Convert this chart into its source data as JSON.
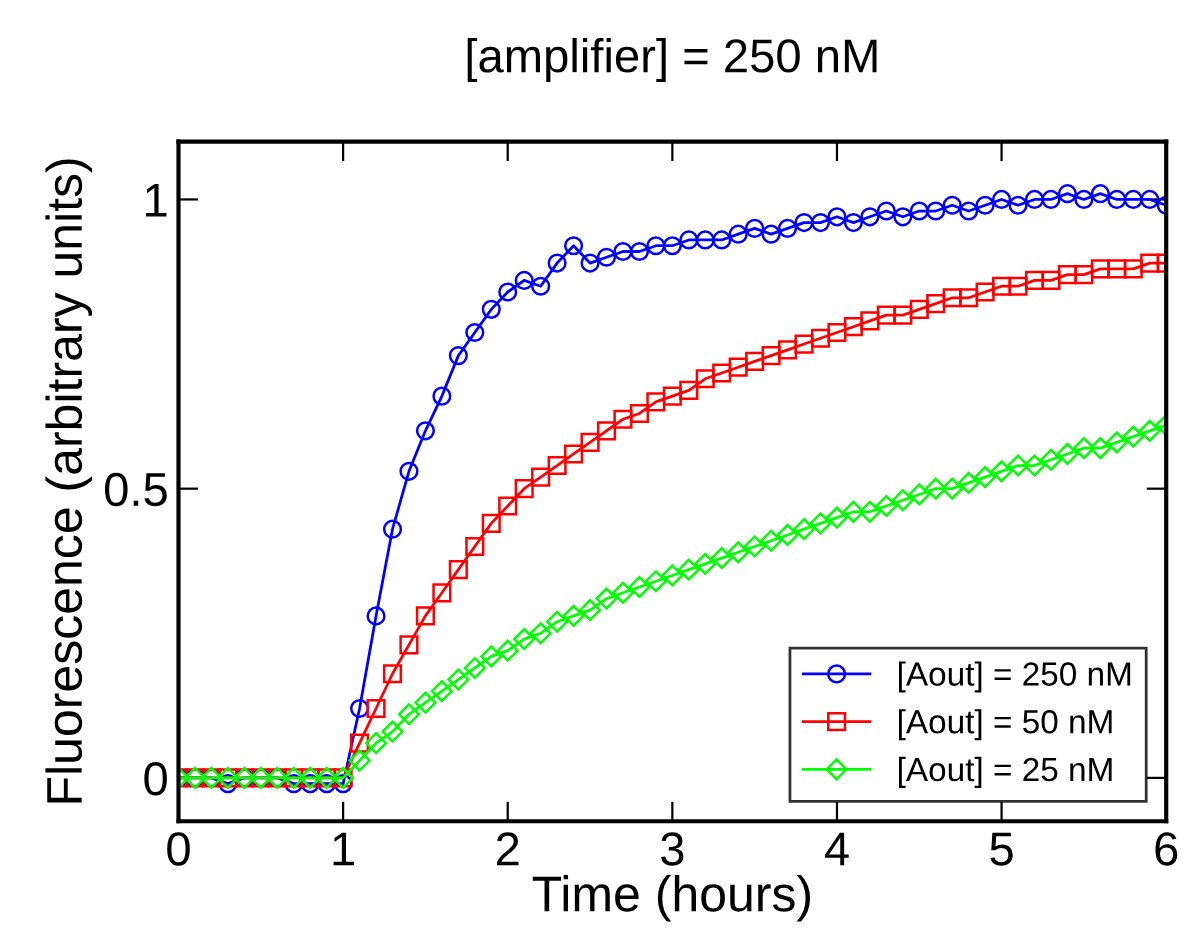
{
  "chart_data": {
    "type": "line",
    "title": "[amplifier] = 250 nM",
    "xlabel": "Time (hours)",
    "ylabel": "Fluorescence (arbitrary units)",
    "x": [
      0,
      0.1,
      0.2,
      0.3,
      0.4,
      0.5,
      0.6,
      0.7,
      0.8,
      0.9,
      1.0,
      1.1,
      1.2,
      1.3,
      1.4,
      1.5,
      1.6,
      1.7,
      1.8,
      1.9,
      2.0,
      2.1,
      2.2,
      2.3,
      2.4,
      2.5,
      2.6,
      2.7,
      2.8,
      2.9,
      3.0,
      3.1,
      3.2,
      3.3,
      3.4,
      3.5,
      3.6,
      3.7,
      3.8,
      3.9,
      4.0,
      4.1,
      4.2,
      4.3,
      4.4,
      4.5,
      4.6,
      4.7,
      4.8,
      4.9,
      5.0,
      5.1,
      5.2,
      5.3,
      5.4,
      5.5,
      5.6,
      5.7,
      5.8,
      5.9,
      6.0
    ],
    "series": [
      {
        "name": "[Aout] = 250 nM",
        "color": "#0000ff",
        "marker": "circle",
        "values": [
          0,
          0,
          0,
          -0.01,
          0,
          0,
          0,
          -0.01,
          -0.01,
          -0.01,
          -0.01,
          0.12,
          0.28,
          0.43,
          0.53,
          0.6,
          0.66,
          0.73,
          0.77,
          0.81,
          0.84,
          0.86,
          0.85,
          0.89,
          0.92,
          0.89,
          0.9,
          0.91,
          0.91,
          0.92,
          0.92,
          0.93,
          0.93,
          0.93,
          0.94,
          0.95,
          0.94,
          0.95,
          0.96,
          0.96,
          0.97,
          0.96,
          0.97,
          0.98,
          0.97,
          0.98,
          0.98,
          0.99,
          0.98,
          0.99,
          1.0,
          0.99,
          1.0,
          1.0,
          1.01,
          1.0,
          1.01,
          1.0,
          1.0,
          1.0,
          0.99
        ]
      },
      {
        "name": "[Aout] = 50 nM",
        "color": "#ff0000",
        "marker": "square",
        "values": [
          0,
          0,
          0,
          0,
          0,
          0,
          0,
          0,
          0,
          0,
          0,
          0.06,
          0.12,
          0.18,
          0.23,
          0.28,
          0.32,
          0.36,
          0.4,
          0.44,
          0.47,
          0.5,
          0.52,
          0.54,
          0.56,
          0.58,
          0.6,
          0.62,
          0.63,
          0.65,
          0.66,
          0.67,
          0.69,
          0.7,
          0.71,
          0.72,
          0.73,
          0.74,
          0.75,
          0.76,
          0.77,
          0.78,
          0.79,
          0.8,
          0.8,
          0.81,
          0.82,
          0.83,
          0.83,
          0.84,
          0.85,
          0.85,
          0.86,
          0.86,
          0.87,
          0.87,
          0.88,
          0.88,
          0.88,
          0.89,
          0.89
        ]
      },
      {
        "name": "[Aout] = 25 nM",
        "color": "#00ff00",
        "marker": "diamond",
        "values": [
          0,
          0,
          0,
          0,
          0,
          0,
          0,
          0,
          0,
          0,
          0,
          0.03,
          0.06,
          0.08,
          0.11,
          0.13,
          0.15,
          0.17,
          0.19,
          0.21,
          0.22,
          0.24,
          0.25,
          0.27,
          0.28,
          0.29,
          0.31,
          0.32,
          0.33,
          0.34,
          0.35,
          0.36,
          0.37,
          0.38,
          0.39,
          0.4,
          0.41,
          0.42,
          0.43,
          0.44,
          0.45,
          0.46,
          0.46,
          0.47,
          0.48,
          0.49,
          0.5,
          0.5,
          0.51,
          0.52,
          0.53,
          0.54,
          0.54,
          0.55,
          0.56,
          0.57,
          0.57,
          0.58,
          0.59,
          0.6,
          0.61
        ]
      }
    ],
    "xlim": [
      0,
      6
    ],
    "xticks": [
      0,
      1,
      2,
      3,
      4,
      5,
      6
    ],
    "ylim": [
      -0.075,
      1.1
    ],
    "yticks": [
      0,
      0.5,
      1
    ],
    "grid": false,
    "legend": "bottom right",
    "line_style": "solid"
  }
}
